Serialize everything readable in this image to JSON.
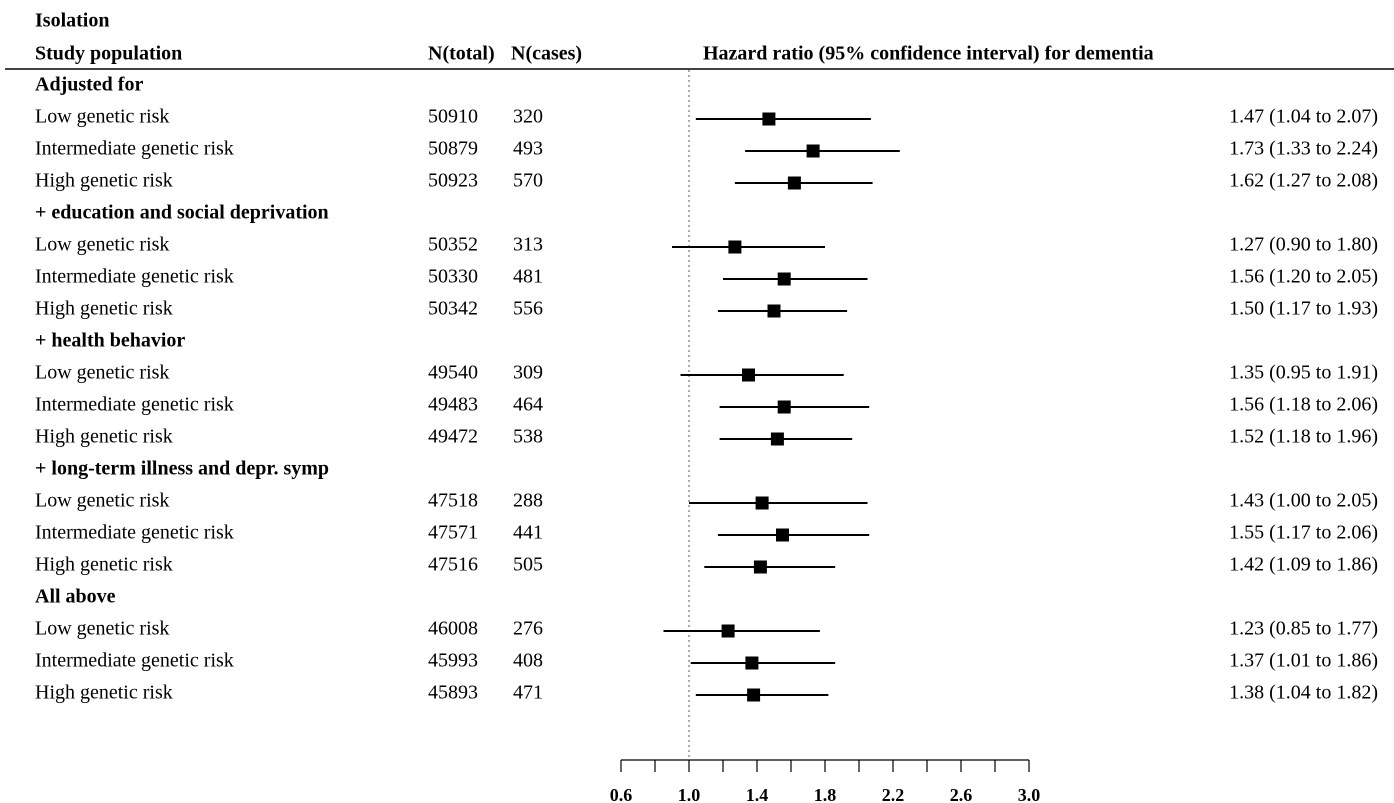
{
  "chart_data": {
    "type": "forest",
    "title": "Isolation",
    "column_headers": [
      "Study population",
      "N(total)",
      "N(cases)",
      "Hazard ratio (95% confidence interval) for dementia"
    ],
    "groups": [
      {
        "label": "Adjusted for",
        "rows": [
          {
            "label": "Low genetic risk",
            "n_total": 50910,
            "n_cases": 320,
            "hr": 1.47,
            "lower": 1.04,
            "upper": 2.07,
            "value_label": "1.47 (1.04 to 2.07)"
          },
          {
            "label": "Intermediate genetic risk",
            "n_total": 50879,
            "n_cases": 493,
            "hr": 1.73,
            "lower": 1.33,
            "upper": 2.24,
            "value_label": "1.73 (1.33 to 2.24)"
          },
          {
            "label": "High genetic risk",
            "n_total": 50923,
            "n_cases": 570,
            "hr": 1.62,
            "lower": 1.27,
            "upper": 2.08,
            "value_label": "1.62 (1.27 to 2.08)"
          }
        ]
      },
      {
        "label": "+ education and social deprivation",
        "rows": [
          {
            "label": "Low genetic risk",
            "n_total": 50352,
            "n_cases": 313,
            "hr": 1.27,
            "lower": 0.9,
            "upper": 1.8,
            "value_label": "1.27 (0.90 to 1.80)"
          },
          {
            "label": "Intermediate genetic risk",
            "n_total": 50330,
            "n_cases": 481,
            "hr": 1.56,
            "lower": 1.2,
            "upper": 2.05,
            "value_label": "1.56 (1.20 to 2.05)"
          },
          {
            "label": "High genetic risk",
            "n_total": 50342,
            "n_cases": 556,
            "hr": 1.5,
            "lower": 1.17,
            "upper": 1.93,
            "value_label": "1.50 (1.17 to 1.93)"
          }
        ]
      },
      {
        "label": "+ health behavior",
        "rows": [
          {
            "label": "Low genetic risk",
            "n_total": 49540,
            "n_cases": 309,
            "hr": 1.35,
            "lower": 0.95,
            "upper": 1.91,
            "value_label": "1.35 (0.95 to 1.91)"
          },
          {
            "label": "Intermediate genetic risk",
            "n_total": 49483,
            "n_cases": 464,
            "hr": 1.56,
            "lower": 1.18,
            "upper": 2.06,
            "value_label": "1.56 (1.18 to 2.06)"
          },
          {
            "label": "High genetic risk",
            "n_total": 49472,
            "n_cases": 538,
            "hr": 1.52,
            "lower": 1.18,
            "upper": 1.96,
            "value_label": "1.52 (1.18 to 1.96)"
          }
        ]
      },
      {
        "label": "+ long-term illness and depr. symp",
        "rows": [
          {
            "label": "Low genetic risk",
            "n_total": 47518,
            "n_cases": 288,
            "hr": 1.43,
            "lower": 1.0,
            "upper": 2.05,
            "value_label": "1.43 (1.00 to 2.05)"
          },
          {
            "label": "Intermediate genetic risk",
            "n_total": 47571,
            "n_cases": 441,
            "hr": 1.55,
            "lower": 1.17,
            "upper": 2.06,
            "value_label": "1.55 (1.17 to 2.06)"
          },
          {
            "label": "High genetic risk",
            "n_total": 47516,
            "n_cases": 505,
            "hr": 1.42,
            "lower": 1.09,
            "upper": 1.86,
            "value_label": "1.42 (1.09 to 1.86)"
          }
        ]
      },
      {
        "label": "All above",
        "rows": [
          {
            "label": "Low genetic risk",
            "n_total": 46008,
            "n_cases": 276,
            "hr": 1.23,
            "lower": 0.85,
            "upper": 1.77,
            "value_label": "1.23 (0.85 to 1.77)"
          },
          {
            "label": "Intermediate genetic risk",
            "n_total": 45993,
            "n_cases": 408,
            "hr": 1.37,
            "lower": 1.01,
            "upper": 1.86,
            "value_label": "1.37 (1.01 to 1.86)"
          },
          {
            "label": "High genetic risk",
            "n_total": 45893,
            "n_cases": 471,
            "hr": 1.38,
            "lower": 1.04,
            "upper": 1.82,
            "value_label": "1.38 (1.04 to 1.82)"
          }
        ]
      }
    ],
    "xlim": [
      0.6,
      3.0
    ],
    "xticks": [
      0.6,
      {
        "value": 1,
        "label": "1.0"
      },
      1.4,
      1.8,
      2.2,
      2.6,
      {
        "value": 3,
        "label": "3.0"
      }
    ],
    "xticks_minor": [
      0.8,
      1.2,
      1.6,
      2.0,
      2.4,
      2.8
    ],
    "reference": 1,
    "color": "#000000"
  }
}
